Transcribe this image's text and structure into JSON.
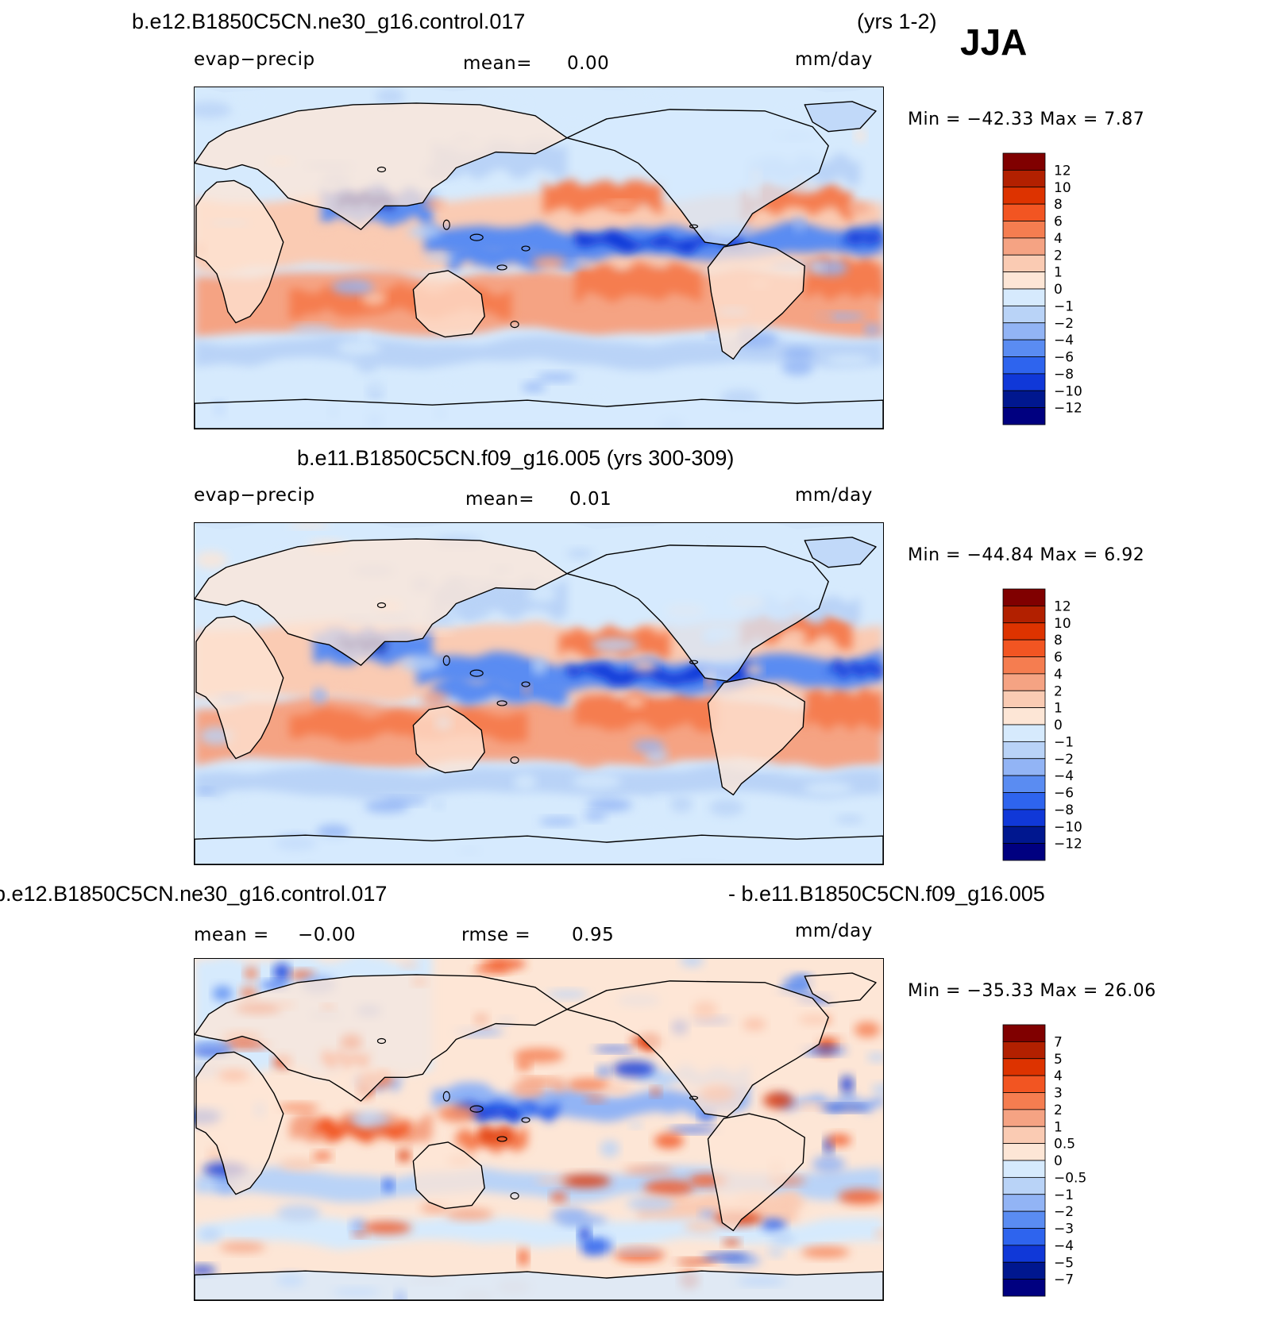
{
  "season": "JJA",
  "panels": [
    {
      "title_left": "b.e12.B1850C5CN.ne30_g16.control.017",
      "title_right": "(yrs 1-2)",
      "variable": "evap−precip",
      "stat1_label": "mean=",
      "stat1_value": "0.00",
      "units": "mm/day",
      "min_max": "Min  =  −42.33  Max  =     7.87",
      "colorbar_levels": [
        "12",
        "10",
        "8",
        "6",
        "4",
        "2",
        "1",
        "0",
        "−1",
        "−2",
        "−4",
        "−6",
        "−8",
        "−10",
        "−12"
      ]
    },
    {
      "title_center": "b.e11.B1850C5CN.f09_g16.005 (yrs 300-309)",
      "variable": "evap−precip",
      "stat1_label": "mean=",
      "stat1_value": "0.01",
      "units": "mm/day",
      "min_max": "Min  =  −44.84  Max  =     6.92",
      "colorbar_levels": [
        "12",
        "10",
        "8",
        "6",
        "4",
        "2",
        "1",
        "0",
        "−1",
        "−2",
        "−4",
        "−6",
        "−8",
        "−10",
        "−12"
      ]
    },
    {
      "title_left": "b.e12.B1850C5CN.ne30_g16.control.017",
      "title_right": "- b.e11.B1850C5CN.f09_g16.005",
      "stat1_label": "mean  =",
      "stat1_value": "−0.00",
      "stat2_label": "rmse  =",
      "stat2_value": "0.95",
      "units": "mm/day",
      "min_max": "Min  =  −35.33  Max  =   26.06",
      "colorbar_levels": [
        "7",
        "5",
        "4",
        "3",
        "2",
        "1",
        "0.5",
        "0",
        "−0.5",
        "−1",
        "−2",
        "−3",
        "−4",
        "−5",
        "−7"
      ]
    }
  ],
  "colors": {
    "colorbar": [
      "#800000",
      "#b22000",
      "#dd3300",
      "#f25522",
      "#f57d50",
      "#f5a383",
      "#facbb3",
      "#fde6d6",
      "#d6eafd",
      "#b9d3f7",
      "#92b4f5",
      "#5a8cf2",
      "#2e64ee",
      "#1038d8",
      "#00178f",
      "#000080"
    ],
    "ocean_base": "#d2e6fb",
    "land_base": "#fde6d6"
  }
}
